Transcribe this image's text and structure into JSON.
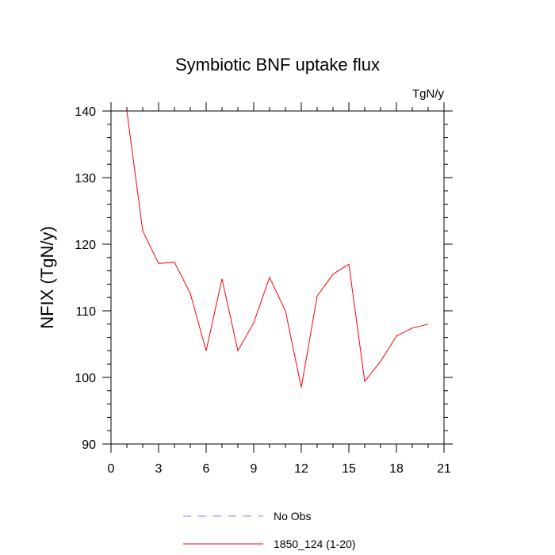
{
  "chart_data": {
    "type": "line",
    "title": "Symbiotic BNF uptake flux",
    "units_label": "TgN/y",
    "xlabel": "",
    "ylabel": "NFIX  (TgN/y)",
    "xlim": [
      0,
      21
    ],
    "ylim": [
      90,
      140
    ],
    "x_ticks": [
      0,
      3,
      6,
      9,
      12,
      15,
      18,
      21
    ],
    "y_ticks": [
      90,
      100,
      110,
      120,
      130,
      140
    ],
    "grid": false,
    "legend_position": "bottom",
    "series": [
      {
        "name": "1850_124 (1-20)",
        "color": "#ff0000",
        "dash": "solid",
        "x": [
          1,
          2,
          3,
          4,
          5,
          6,
          7,
          8,
          9,
          10,
          11,
          12,
          13,
          14,
          15,
          16,
          17,
          18,
          19,
          20
        ],
        "values": [
          140.0,
          122.0,
          117.1,
          117.3,
          112.6,
          104.0,
          114.8,
          104.0,
          108.2,
          115.0,
          110.0,
          98.5,
          112.2,
          115.5,
          117.0,
          99.4,
          102.4,
          106.2,
          107.4,
          108.0
        ]
      }
    ],
    "legend": [
      {
        "name": "No Obs",
        "color": "#8080ff",
        "dash": "dashed"
      },
      {
        "name": "1850_124 (1-20)",
        "color": "#ff0000",
        "dash": "solid"
      }
    ]
  }
}
